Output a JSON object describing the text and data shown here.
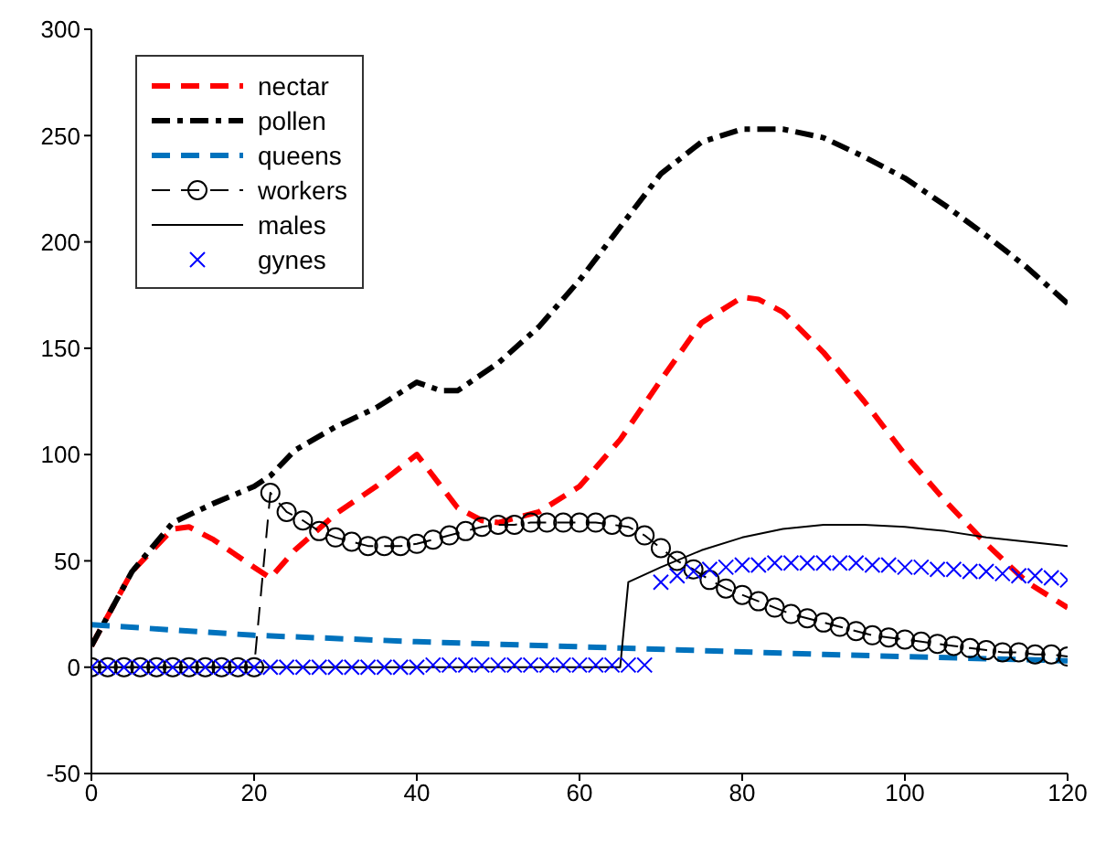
{
  "chart_data": {
    "type": "line",
    "xlim": [
      0,
      120
    ],
    "ylim": [
      -50,
      300
    ],
    "xticks": [
      0,
      20,
      40,
      60,
      80,
      100,
      120
    ],
    "yticks": [
      -50,
      0,
      50,
      100,
      150,
      200,
      250,
      300
    ],
    "legend": "top left",
    "series": [
      {
        "name": "nectar",
        "color": "#ff0000",
        "line_style": "dashed",
        "marker": "none",
        "x": [
          0,
          5,
          10,
          12,
          15,
          20,
          22,
          25,
          30,
          35,
          40,
          45,
          48,
          50,
          55,
          60,
          65,
          70,
          75,
          80,
          82,
          85,
          90,
          95,
          100,
          105,
          110,
          115,
          120
        ],
        "values": [
          10,
          45,
          65,
          66,
          60,
          47,
          42,
          55,
          72,
          85,
          100,
          75,
          69,
          68,
          73,
          85,
          107,
          135,
          162,
          174,
          173,
          167,
          148,
          125,
          100,
          78,
          58,
          40,
          28
        ]
      },
      {
        "name": "pollen",
        "color": "#000000",
        "line_style": "dashdot",
        "marker": "none",
        "x": [
          0,
          5,
          10,
          15,
          20,
          22,
          25,
          30,
          35,
          40,
          43,
          45,
          50,
          55,
          60,
          65,
          70,
          75,
          80,
          85,
          90,
          95,
          100,
          105,
          110,
          115,
          120
        ],
        "values": [
          10,
          45,
          68,
          77,
          85,
          90,
          102,
          113,
          122,
          134,
          130,
          130,
          143,
          160,
          182,
          207,
          232,
          247,
          253,
          253,
          249,
          240,
          230,
          217,
          203,
          188,
          171
        ]
      },
      {
        "name": "queens",
        "color": "#0072bd",
        "line_style": "dashed",
        "marker": "none",
        "x": [
          0,
          20,
          40,
          65,
          90,
          120
        ],
        "values": [
          20,
          15,
          12,
          9,
          6,
          3
        ]
      },
      {
        "name": "workers",
        "color": "#000000",
        "line_style": "dashed",
        "marker": "circle",
        "x": [
          0,
          2,
          4,
          6,
          8,
          10,
          12,
          14,
          16,
          18,
          20,
          22,
          24,
          26,
          28,
          30,
          32,
          34,
          36,
          38,
          40,
          42,
          44,
          46,
          48,
          50,
          52,
          54,
          56,
          58,
          60,
          62,
          64,
          66,
          68,
          70,
          72,
          74,
          76,
          78,
          80,
          82,
          84,
          86,
          88,
          90,
          92,
          94,
          96,
          98,
          100,
          102,
          104,
          106,
          108,
          110,
          112,
          114,
          116,
          118,
          120
        ],
        "values": [
          0,
          0,
          0,
          0,
          0,
          0,
          0,
          0,
          0,
          0,
          0,
          82,
          73,
          69,
          64,
          61,
          59,
          57,
          57,
          57,
          58,
          60,
          62,
          64,
          66,
          67,
          67,
          68,
          68,
          68,
          68,
          68,
          67,
          66,
          62,
          56,
          50,
          46,
          41,
          37,
          34,
          31,
          28,
          25,
          23,
          21,
          19,
          17,
          15,
          14,
          13,
          12,
          11,
          10,
          9,
          8,
          7,
          7,
          6,
          6,
          5
        ]
      },
      {
        "name": "males",
        "color": "#000000",
        "line_style": "solid",
        "marker": "none",
        "x": [
          0,
          65,
          66,
          70,
          75,
          80,
          85,
          90,
          95,
          100,
          105,
          110,
          115,
          120
        ],
        "values": [
          0,
          0,
          40,
          47,
          55,
          61,
          65,
          67,
          67,
          66,
          64,
          61,
          59,
          57
        ]
      },
      {
        "name": "gynes",
        "type": "scatter",
        "color": "#0000ff",
        "marker": "cross",
        "x": [
          0,
          2,
          4,
          6,
          8,
          10,
          12,
          14,
          16,
          18,
          20,
          22,
          24,
          26,
          28,
          30,
          32,
          34,
          36,
          38,
          40,
          42,
          44,
          46,
          48,
          50,
          52,
          54,
          56,
          58,
          60,
          62,
          64,
          66,
          68,
          70,
          72,
          74,
          76,
          78,
          80,
          82,
          84,
          86,
          88,
          90,
          92,
          94,
          96,
          98,
          100,
          102,
          104,
          106,
          108,
          110,
          112,
          114,
          116,
          118,
          120
        ],
        "values": [
          0,
          0,
          0,
          0,
          0,
          0,
          0,
          0,
          0,
          0,
          0,
          0,
          0,
          0,
          0,
          0,
          0,
          0,
          0,
          0,
          0,
          1,
          1,
          1,
          1,
          1,
          1,
          1,
          1,
          1,
          1,
          1,
          1,
          1,
          1,
          40,
          43,
          45,
          46,
          47,
          48,
          48,
          49,
          49,
          49,
          49,
          49,
          49,
          48,
          48,
          47,
          47,
          46,
          46,
          45,
          45,
          44,
          43,
          43,
          42,
          41
        ]
      }
    ]
  }
}
